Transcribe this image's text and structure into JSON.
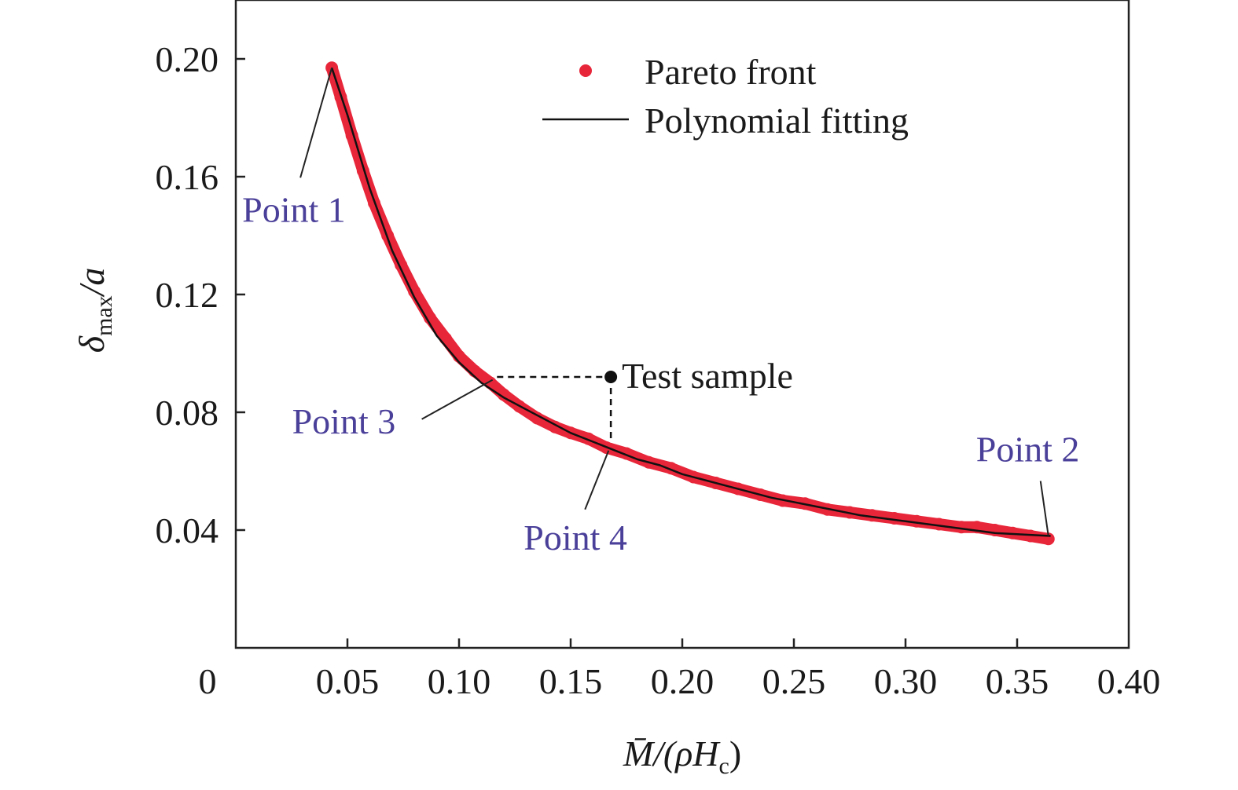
{
  "chart_data": {
    "type": "scatter",
    "xlim": [
      0,
      0.4
    ],
    "ylim": [
      0,
      0.22
    ],
    "x_ticks": [
      {
        "value": 0,
        "label": "0"
      },
      {
        "value": 0.05,
        "label": "0.05"
      },
      {
        "value": 0.1,
        "label": "0.10"
      },
      {
        "value": 0.15,
        "label": "0.15"
      },
      {
        "value": 0.2,
        "label": "0.20"
      },
      {
        "value": 0.25,
        "label": "0.25"
      },
      {
        "value": 0.3,
        "label": "0.30"
      },
      {
        "value": 0.35,
        "label": "0.35"
      },
      {
        "value": 0.4,
        "label": "0.40"
      }
    ],
    "y_ticks": [
      {
        "value": 0.04,
        "label": "0.04"
      },
      {
        "value": 0.08,
        "label": "0.08"
      },
      {
        "value": 0.12,
        "label": "0.12"
      },
      {
        "value": 0.16,
        "label": "0.16"
      },
      {
        "value": 0.2,
        "label": "0.20"
      }
    ],
    "xlabel": {
      "main": "M̄/(ρH",
      "sub": "c",
      "close": ")"
    },
    "ylabel": {
      "main": "δ",
      "sub": "max",
      "rest": "/a"
    },
    "grid": false,
    "legend_position": "top-right",
    "legend": [
      {
        "label": "Pareto front",
        "marker": "dot",
        "color": "#e8263a"
      },
      {
        "label": "Polynomial fitting",
        "marker": "line",
        "color": "#111111"
      }
    ],
    "series": [
      {
        "name": "Pareto front",
        "kind": "scatter",
        "color": "#e8263a",
        "x": [
          0.043,
          0.047,
          0.052,
          0.057,
          0.062,
          0.068,
          0.074,
          0.08,
          0.087,
          0.094,
          0.1,
          0.107,
          0.114,
          0.12,
          0.127,
          0.135,
          0.143,
          0.15,
          0.158,
          0.166,
          0.175,
          0.185,
          0.195,
          0.205,
          0.215,
          0.225,
          0.235,
          0.245,
          0.255,
          0.265,
          0.275,
          0.285,
          0.295,
          0.305,
          0.315,
          0.325,
          0.332,
          0.34,
          0.348,
          0.356,
          0.364
        ],
        "y": [
          0.197,
          0.187,
          0.174,
          0.162,
          0.151,
          0.14,
          0.13,
          0.121,
          0.112,
          0.105,
          0.099,
          0.094,
          0.09,
          0.086,
          0.082,
          0.078,
          0.075,
          0.073,
          0.071,
          0.068,
          0.066,
          0.063,
          0.061,
          0.058,
          0.056,
          0.054,
          0.052,
          0.05,
          0.049,
          0.047,
          0.046,
          0.045,
          0.044,
          0.043,
          0.042,
          0.041,
          0.041,
          0.04,
          0.039,
          0.038,
          0.037
        ]
      },
      {
        "name": "Polynomial fitting",
        "kind": "line",
        "color": "#111111",
        "x": [
          0.043,
          0.05,
          0.06,
          0.07,
          0.08,
          0.09,
          0.1,
          0.11,
          0.12,
          0.13,
          0.14,
          0.15,
          0.16,
          0.17,
          0.18,
          0.19,
          0.2,
          0.22,
          0.24,
          0.26,
          0.28,
          0.3,
          0.32,
          0.34,
          0.365
        ],
        "y": [
          0.197,
          0.181,
          0.156,
          0.135,
          0.119,
          0.106,
          0.097,
          0.09,
          0.085,
          0.081,
          0.077,
          0.073,
          0.07,
          0.067,
          0.064,
          0.062,
          0.059,
          0.055,
          0.051,
          0.048,
          0.045,
          0.043,
          0.041,
          0.039,
          0.038
        ]
      }
    ],
    "test_sample": {
      "label": "Test sample",
      "x": 0.168,
      "y": 0.092,
      "color": "#111111",
      "guide_x_from": 0.117,
      "guide_y_to": 0.067
    },
    "annotations": [
      {
        "label": "Point 1",
        "color": "#4a3f99",
        "point": [
          0.043,
          0.197
        ],
        "anchor": "bottom-left"
      },
      {
        "label": "Point 2",
        "color": "#4a3f99",
        "point": [
          0.364,
          0.038
        ],
        "anchor": "top"
      },
      {
        "label": "Point 3",
        "color": "#4a3f99",
        "point": [
          0.115,
          0.091
        ],
        "anchor": "left"
      },
      {
        "label": "Point 4",
        "color": "#4a3f99",
        "point": [
          0.167,
          0.067
        ],
        "anchor": "bottom"
      }
    ]
  }
}
